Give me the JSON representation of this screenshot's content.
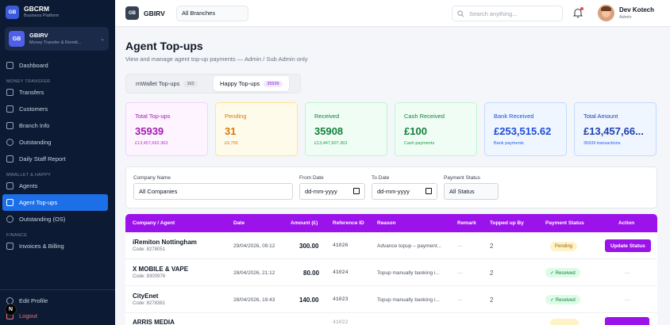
{
  "sidebar": {
    "brand": {
      "logo": "GB",
      "name": "GBCRM",
      "sub": "Business Platform"
    },
    "org": {
      "logo": "GB",
      "name": "GBIRV",
      "sub": "Money Transfer & Remitt..."
    },
    "dashboard": "Dashboard",
    "sections": {
      "money_transfer": "MONEY TRANSFER",
      "mwallet": "MWALLET & HAPPY",
      "finance": "FINANCE"
    },
    "money_items": [
      "Transfers",
      "Customers",
      "Branch Info",
      "Outstanding",
      "Daily Staff Report"
    ],
    "mwallet_items": [
      "Agents",
      "Agent Top-ups",
      "Outstanding (OS)"
    ],
    "finance_items": [
      "Invoices & Billing"
    ],
    "bottom": {
      "edit_profile": "Edit Profile",
      "logout": "Logout",
      "avatar_letter": "N"
    }
  },
  "topbar": {
    "logo": "GB",
    "name": "GBIRV",
    "branch": "All Branches",
    "search_placeholder": "Search anything...",
    "user_name": "Dev Kotech",
    "user_role": "Admin"
  },
  "page": {
    "title": "Agent Top-ups",
    "subtitle": "View and manage agent top-up payments — Admin / Sub Admin only"
  },
  "tabs": [
    {
      "label": "mWallet Top-ups",
      "count": "162"
    },
    {
      "label": "Happy Top-ups",
      "count": "35939"
    }
  ],
  "cards": [
    {
      "label": "Total Top-ups",
      "value": "35939",
      "sub": "£13,457,662.363",
      "color": "#a21caf"
    },
    {
      "label": "Pending",
      "value": "31",
      "sub": "£9,755",
      "color": "#d97706"
    },
    {
      "label": "Received",
      "value": "35908",
      "sub": "£13,447,907.363",
      "color": "#15803d"
    },
    {
      "label": "Cash Received",
      "value": "£100",
      "sub": "Cash payments",
      "color": "#15803d"
    },
    {
      "label": "Bank Received",
      "value": "£253,515.62",
      "sub": "Bank payments",
      "color": "#1d4ed8"
    },
    {
      "label": "Total Amount",
      "value": "£13,457,66...",
      "sub": "35939 transactions",
      "color": "#1e40af"
    }
  ],
  "filters": {
    "company_label": "Company Name",
    "company_value": "All Companies",
    "from_label": "From Date",
    "from_value": "dd-mm-yyyy",
    "to_label": "To Date",
    "to_value": "dd-mm-yyyy",
    "status_label": "Payment Status",
    "status_value": "All Status"
  },
  "table": {
    "headers": [
      "Company / Agent",
      "Date",
      "Amount (£)",
      "Reference ID",
      "Reason",
      "Remark",
      "Topped up By",
      "Payment Status",
      "Action"
    ],
    "rows": [
      {
        "name": "iRemiton Nottingham",
        "code": "Code: 8278051",
        "date": "29/04/2026, 09:12",
        "amount": "300.00",
        "ref": "41026",
        "reason": "Advance topup – payment...",
        "remark": "—",
        "by": "2",
        "status": "Pending",
        "action": "Update Status"
      },
      {
        "name": "X MOBILE & VAPE",
        "code": "Code: 8300976",
        "date": "28/04/2026, 21:12",
        "amount": "80.00",
        "ref": "41024",
        "reason": "Topup manually banking i...",
        "remark": "—",
        "by": "2",
        "status": "✓ Received",
        "action": "—"
      },
      {
        "name": "CityEnet",
        "code": "Code: 8278381",
        "date": "28/04/2026, 19:43",
        "amount": "140.00",
        "ref": "41023",
        "reason": "Topup manually banking i...",
        "remark": "—",
        "by": "2",
        "status": "✓ Received",
        "action": "—"
      },
      {
        "name": "ARRIS MEDIA",
        "code": "",
        "date": "",
        "amount": "",
        "ref": "41022",
        "reason": "",
        "remark": "",
        "by": "",
        "status": "",
        "action": ""
      }
    ]
  }
}
